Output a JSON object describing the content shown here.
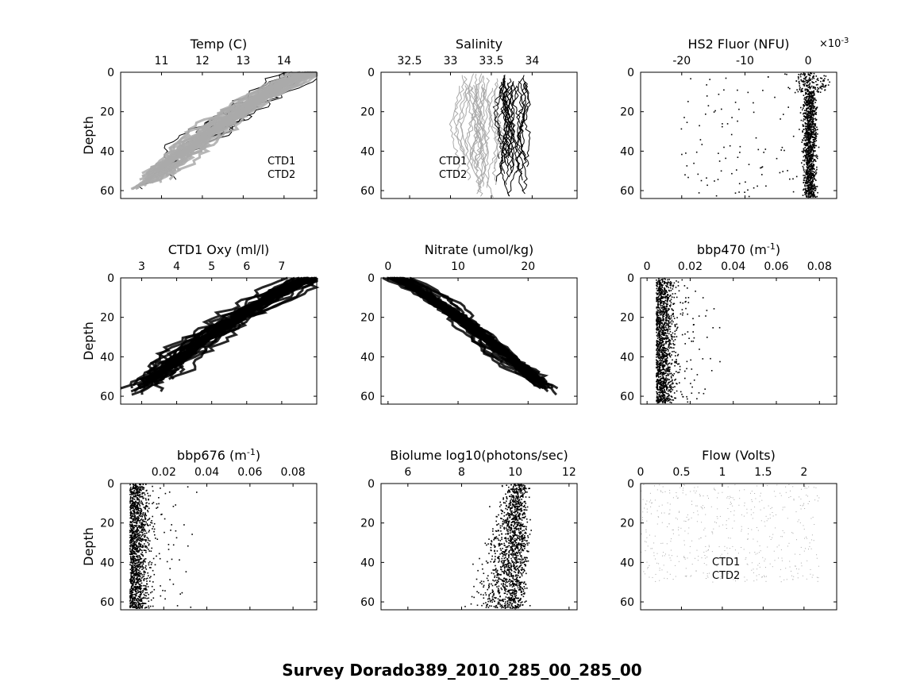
{
  "figure_title": "Survey Dorado389_2010_285_00_285_00",
  "chart_data": [
    {
      "type": "line",
      "title": "Temp (C)",
      "ylabel": "Depth",
      "xlim": [
        10.0,
        14.8
      ],
      "ylim": [
        0,
        64
      ],
      "y_reversed": true,
      "x_axis_location": "top",
      "xticks": [
        11,
        12,
        13,
        14
      ],
      "yticks": [
        0,
        20,
        40,
        60
      ],
      "series": [
        {
          "name": "CTD1",
          "color": "#000000",
          "kind": "profile",
          "surface": 14.5,
          "bottom": 10.4,
          "spread": 1.1
        },
        {
          "name": "CTD2",
          "color": "#aaaaaa",
          "kind": "band",
          "surface": 14.6,
          "bottom": 10.3,
          "spread": 0.8
        }
      ],
      "legend": [
        "CTD1",
        "CTD2"
      ]
    },
    {
      "type": "line",
      "title": "Salinity",
      "ylabel": "",
      "xlim": [
        32.15,
        34.55
      ],
      "ylim": [
        0,
        64
      ],
      "y_reversed": true,
      "x_axis_location": "top",
      "xticks": [
        32.5,
        33,
        33.5,
        34
      ],
      "xticklabels": [
        "32.5",
        "33",
        "33.5",
        "34"
      ],
      "yticks": [
        0,
        20,
        40,
        60
      ],
      "series": [
        {
          "name": "CTD1",
          "color": "#000000",
          "kind": "vertical",
          "center": 33.75,
          "spread": 0.3
        },
        {
          "name": "CTD2",
          "color": "#aaaaaa",
          "kind": "vertical",
          "center": 33.35,
          "spread": 0.45
        }
      ],
      "legend": [
        "CTD1",
        "CTD2"
      ]
    },
    {
      "type": "scatter",
      "title": "HS2 Fluor (NFU)",
      "exponent_label": "×10^-3",
      "ylabel": "",
      "xlim": [
        -0.0265,
        0.0045
      ],
      "ylim": [
        0,
        64
      ],
      "y_reversed": true,
      "x_axis_location": "top",
      "xticks": [
        -0.02,
        -0.01,
        0
      ],
      "xticklabels": [
        "-20",
        "-10",
        "0"
      ],
      "yticks": [
        0,
        20,
        40,
        60
      ],
      "series": [
        {
          "name": "HS2 Fluor",
          "color": "#000000",
          "kind": "spike",
          "center": 0.0002,
          "spread": 0.0015
        }
      ]
    },
    {
      "type": "line",
      "title": "CTD1 Oxy (ml/l)",
      "ylabel": "Depth",
      "xlim": [
        2.4,
        8.0
      ],
      "ylim": [
        0,
        64
      ],
      "y_reversed": true,
      "x_axis_location": "top",
      "xticks": [
        3,
        4,
        5,
        6,
        7
      ],
      "yticks": [
        0,
        20,
        40,
        60
      ],
      "series": [
        {
          "name": "CTD1 Oxy",
          "color": "#000000",
          "kind": "band",
          "surface": 7.7,
          "bottom": 2.7,
          "spread": 1.0
        }
      ]
    },
    {
      "type": "scatter",
      "title": "Nitrate (umol/kg)",
      "ylabel": "",
      "xlim": [
        -1,
        27
      ],
      "ylim": [
        0,
        64
      ],
      "y_reversed": true,
      "x_axis_location": "top",
      "xticks": [
        0,
        10,
        20
      ],
      "yticks": [
        0,
        20,
        40,
        60
      ],
      "series": [
        {
          "name": "Nitrate",
          "color": "#000000",
          "kind": "band",
          "surface": 1,
          "bottom": 24,
          "spread": 3.5
        }
      ]
    },
    {
      "type": "scatter",
      "title": "bbp470 (m^-1)",
      "ylabel": "",
      "xlim": [
        -0.003,
        0.088
      ],
      "ylim": [
        0,
        64
      ],
      "y_reversed": true,
      "x_axis_location": "top",
      "xticks": [
        0,
        0.02,
        0.04,
        0.06,
        0.08
      ],
      "xticklabels": [
        "0",
        "0.02",
        "0.04",
        "0.06",
        "0.08"
      ],
      "yticks": [
        0,
        20,
        40,
        60
      ],
      "series": [
        {
          "name": "bbp470",
          "color": "#000000",
          "kind": "skew",
          "center": 0.004,
          "spread": 0.012
        }
      ]
    },
    {
      "type": "scatter",
      "title": "bbp676 (m^-1)",
      "ylabel": "Depth",
      "xlim": [
        0,
        0.091
      ],
      "ylim": [
        0,
        64
      ],
      "y_reversed": true,
      "x_axis_location": "top",
      "xticks": [
        0.02,
        0.04,
        0.06,
        0.08
      ],
      "xticklabels": [
        "0.02",
        "0.04",
        "0.06",
        "0.08"
      ],
      "yticks": [
        0,
        20,
        40,
        60
      ],
      "series": [
        {
          "name": "bbp676",
          "color": "#000000",
          "kind": "skew",
          "center": 0.004,
          "spread": 0.012
        }
      ]
    },
    {
      "type": "scatter",
      "title": "Biolume log10(photons/sec)",
      "ylabel": "",
      "xlim": [
        5.0,
        12.3
      ],
      "ylim": [
        0,
        64
      ],
      "y_reversed": true,
      "x_axis_location": "top",
      "xticks": [
        6,
        8,
        10,
        12
      ],
      "yticks": [
        0,
        20,
        40,
        60
      ],
      "series": [
        {
          "name": "Biolume",
          "color": "#000000",
          "kind": "cloud",
          "center": 10.3,
          "spread": 1.6
        }
      ]
    },
    {
      "type": "scatter",
      "title": "Flow (Volts)",
      "ylabel": "",
      "xlim": [
        0,
        2.4
      ],
      "ylim": [
        0,
        64
      ],
      "y_reversed": true,
      "x_axis_location": "top",
      "xticks": [
        0,
        0.5,
        1,
        1.5,
        2
      ],
      "xticklabels": [
        "0",
        "0.5",
        "1",
        "1.5",
        "2"
      ],
      "yticks": [
        0,
        20,
        40,
        60
      ],
      "series": [
        {
          "name": "Flow",
          "color": "#aaaaaa",
          "kind": "sparse",
          "center": 0.4,
          "spread": 2.2
        }
      ],
      "legend": [
        "CTD1",
        "CTD2"
      ]
    }
  ]
}
